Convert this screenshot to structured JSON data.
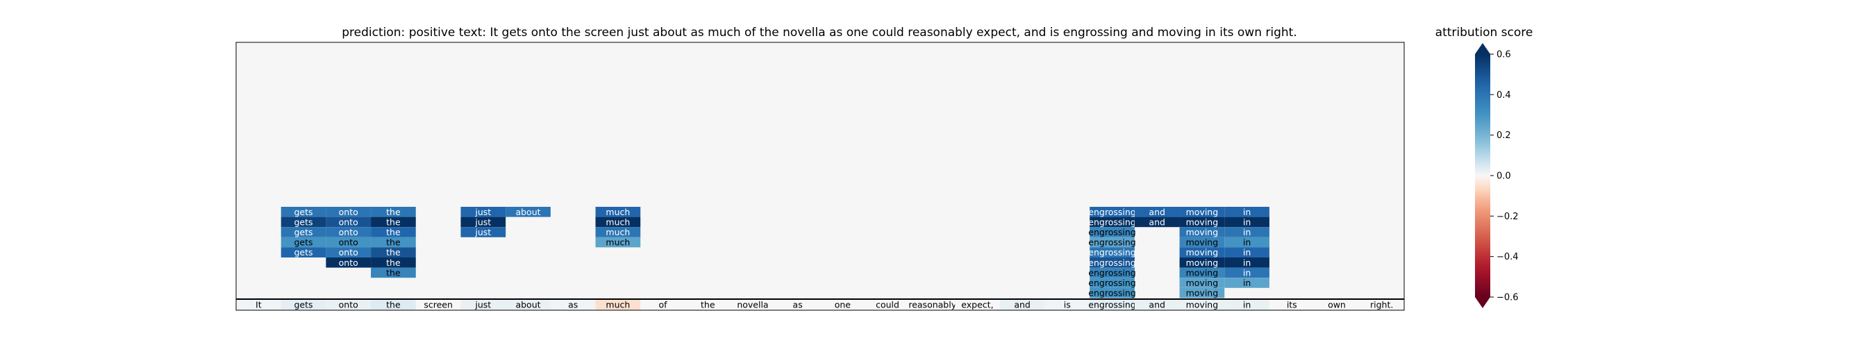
{
  "chart_data": {
    "type": "heatmap",
    "title": "prediction:  positive     text:  It gets onto the screen just about as much of the novella as one could reasonably expect, and is engrossing and moving in its own right.",
    "tokens": [
      "It",
      "gets",
      "onto",
      "the",
      "screen",
      "just",
      "about",
      "as",
      "much",
      "of",
      "the",
      "novella",
      "as",
      "one",
      "could",
      "reasonably",
      "expect,",
      "and",
      "is",
      "engrossing",
      "and",
      "moving",
      "in",
      "its",
      "own",
      "right."
    ],
    "base_row_scores": [
      0.01,
      0.03,
      0.02,
      0.04,
      0.0,
      0.02,
      0.02,
      0.01,
      -0.05,
      0.0,
      0.0,
      0.0,
      0.0,
      0.0,
      0.0,
      0.0,
      0.0,
      0.02,
      0.01,
      0.03,
      0.02,
      0.02,
      0.02,
      0.0,
      0.0,
      0.0
    ],
    "columns": [
      {
        "index": 1,
        "scores": [
          0.4,
          0.55,
          0.4,
          0.3,
          0.45
        ]
      },
      {
        "index": 2,
        "scores": [
          0.4,
          0.5,
          0.4,
          0.3,
          0.4,
          0.6
        ]
      },
      {
        "index": 3,
        "scores": [
          0.4,
          0.6,
          0.45,
          0.3,
          0.5,
          0.65,
          0.35
        ]
      },
      {
        "index": 5,
        "scores": [
          0.45,
          0.6,
          0.45
        ]
      },
      {
        "index": 6,
        "scores": [
          0.4
        ]
      },
      {
        "index": 8,
        "scores": [
          0.45,
          0.6,
          0.4,
          0.25
        ]
      },
      {
        "index": 19,
        "scores": [
          0.45,
          0.6,
          0.35,
          0.25,
          0.4,
          0.5,
          0.35,
          0.3,
          0.3
        ]
      },
      {
        "index": 20,
        "scores": [
          0.45,
          0.6
        ]
      },
      {
        "index": 21,
        "scores": [
          0.45,
          0.6,
          0.4,
          0.35,
          0.45,
          0.6,
          0.35,
          0.25,
          0.25
        ]
      },
      {
        "index": 22,
        "scores": [
          0.45,
          0.6,
          0.4,
          0.3,
          0.45,
          0.6,
          0.4,
          0.25
        ]
      }
    ],
    "colorbar": {
      "label": "attribution score",
      "range": [
        -0.6,
        0.6
      ],
      "ticks": [
        "0.6",
        "0.4",
        "0.2",
        "0.0",
        "−0.2",
        "−0.4",
        "−0.6"
      ],
      "tick_values": [
        0.6,
        0.4,
        0.2,
        0.0,
        -0.2,
        -0.4,
        -0.6
      ],
      "colormap": "RdBu",
      "extend": "both"
    },
    "background_color": "#f5f6f5",
    "grid": false
  }
}
